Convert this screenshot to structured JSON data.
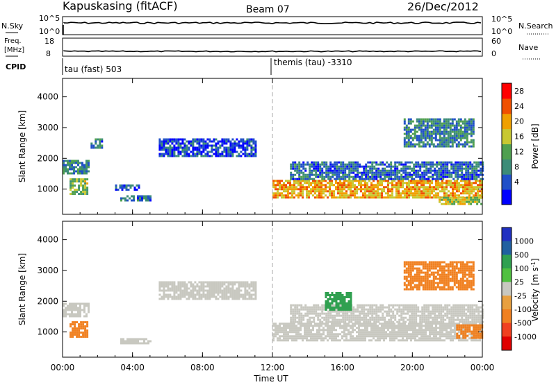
{
  "header": {
    "station": "Kapuskasing (fitACF)",
    "beam": "Beam 07",
    "date": "26/Dec/2012"
  },
  "noise_panel": {
    "left_label": "N.Sky",
    "left_ticks": [
      "10^5",
      "10^0"
    ],
    "right_ticks": [
      "10^5",
      "10^0"
    ],
    "right_label": "N.Search"
  },
  "freq_panel": {
    "left_label_line1": "Freq.",
    "left_label_line2": "[MHz]",
    "left_ticks": [
      "18",
      "8"
    ],
    "right_ticks": [
      "60",
      "0"
    ],
    "right_label": "Nave"
  },
  "cpid": {
    "label": "CPID",
    "entries": [
      {
        "text": "tau (fast) 503",
        "start_hour": 0
      },
      {
        "text": "themis (tau) -3310",
        "start_hour": 12
      }
    ]
  },
  "colors": {
    "power": [
      "#0000ff",
      "#2050c8",
      "#3c8c78",
      "#50a050",
      "#c8c832",
      "#f0a000",
      "#f05000",
      "#ff0000"
    ],
    "velocity_positive": [
      "#2030c0",
      "#2060a0",
      "#30a050",
      "#50c040"
    ],
    "velocity_neutral": "#c8c8c0",
    "velocity_negative": [
      "#e8a040",
      "#f08020",
      "#f04020",
      "#e00000"
    ]
  },
  "chart_data": [
    {
      "type": "heatmap",
      "panel": "power",
      "ylabel": "Slant Range [km]",
      "xlabel": "Time UT",
      "x_ticks": [
        "00:00",
        "04:00",
        "08:00",
        "12:00",
        "16:00",
        "20:00",
        "00:00"
      ],
      "x_range_hours": [
        0,
        24
      ],
      "y_ticks": [
        1000,
        2000,
        3000,
        4000
      ],
      "ylim": [
        180,
        4600
      ],
      "colorbar": {
        "label": "Power [dB]",
        "ticks": [
          "28",
          "24",
          "20",
          "16",
          "12",
          "8",
          "4"
        ],
        "range": [
          0,
          30
        ]
      },
      "regions": [
        {
          "t0": 0.0,
          "t1": 1.5,
          "r0": 1500,
          "r1": 1950,
          "level": 10
        },
        {
          "t0": 0.4,
          "t1": 1.4,
          "r0": 850,
          "r1": 1350,
          "level": 14
        },
        {
          "t0": 1.6,
          "t1": 2.3,
          "r0": 2350,
          "r1": 2650,
          "level": 8
        },
        {
          "t0": 3.3,
          "t1": 5.0,
          "r0": 620,
          "r1": 800,
          "level": 8
        },
        {
          "t0": 3.0,
          "t1": 4.4,
          "r0": 1000,
          "r1": 1150,
          "level": 5
        },
        {
          "t0": 5.5,
          "t1": 11.0,
          "r0": 2100,
          "r1": 2650,
          "level": 5
        },
        {
          "t0": 12.0,
          "t1": 24.0,
          "r0": 700,
          "r1": 1300,
          "level": 20
        },
        {
          "t0": 13.0,
          "t1": 24.0,
          "r0": 1300,
          "r1": 1900,
          "level": 7
        },
        {
          "t0": 19.5,
          "t1": 23.5,
          "r0": 2400,
          "r1": 3300,
          "level": 9
        },
        {
          "t0": 21.5,
          "t1": 24.0,
          "r0": 500,
          "r1": 750,
          "level": 17
        }
      ]
    },
    {
      "type": "heatmap",
      "panel": "velocity",
      "ylabel": "Slant Range [km]",
      "xlabel": "Time UT",
      "x_ticks": [
        "00:00",
        "04:00",
        "08:00",
        "12:00",
        "16:00",
        "20:00",
        "00:00"
      ],
      "x_range_hours": [
        0,
        24
      ],
      "y_ticks": [
        1000,
        2000,
        3000,
        4000
      ],
      "ylim": [
        180,
        4600
      ],
      "colorbar": {
        "label": "Velocity [m s^-1]",
        "ticks": [
          "1000",
          "500",
          "100",
          "25",
          "-25",
          "-100",
          "-500",
          "-1000"
        ]
      },
      "regions": [
        {
          "t0": 0.0,
          "t1": 1.5,
          "r0": 1500,
          "r1": 1950,
          "v": 0
        },
        {
          "t0": 0.4,
          "t1": 1.4,
          "r0": 850,
          "r1": 1350,
          "v": -200
        },
        {
          "t0": 3.3,
          "t1": 5.0,
          "r0": 620,
          "r1": 800,
          "v": 0
        },
        {
          "t0": 5.5,
          "t1": 11.0,
          "r0": 2100,
          "r1": 2650,
          "v": 0
        },
        {
          "t0": 12.0,
          "t1": 24.0,
          "r0": 700,
          "r1": 1300,
          "v": 0
        },
        {
          "t0": 13.0,
          "t1": 24.0,
          "r0": 1300,
          "r1": 1900,
          "v": 0
        },
        {
          "t0": 19.5,
          "t1": 23.5,
          "r0": 2400,
          "r1": 3300,
          "v": -300
        },
        {
          "t0": 15.0,
          "t1": 16.5,
          "r0": 1700,
          "r1": 2300,
          "v": 150
        },
        {
          "t0": 22.5,
          "t1": 24.0,
          "r0": 800,
          "r1": 1250,
          "v": -200
        }
      ]
    }
  ],
  "right_panel_labels": {
    "power": "Power [dB]",
    "velocity": "Velocity"
  },
  "velocity_unit": "[m s",
  "velocity_unit_sup": "-1",
  "velocity_unit_end": "]"
}
